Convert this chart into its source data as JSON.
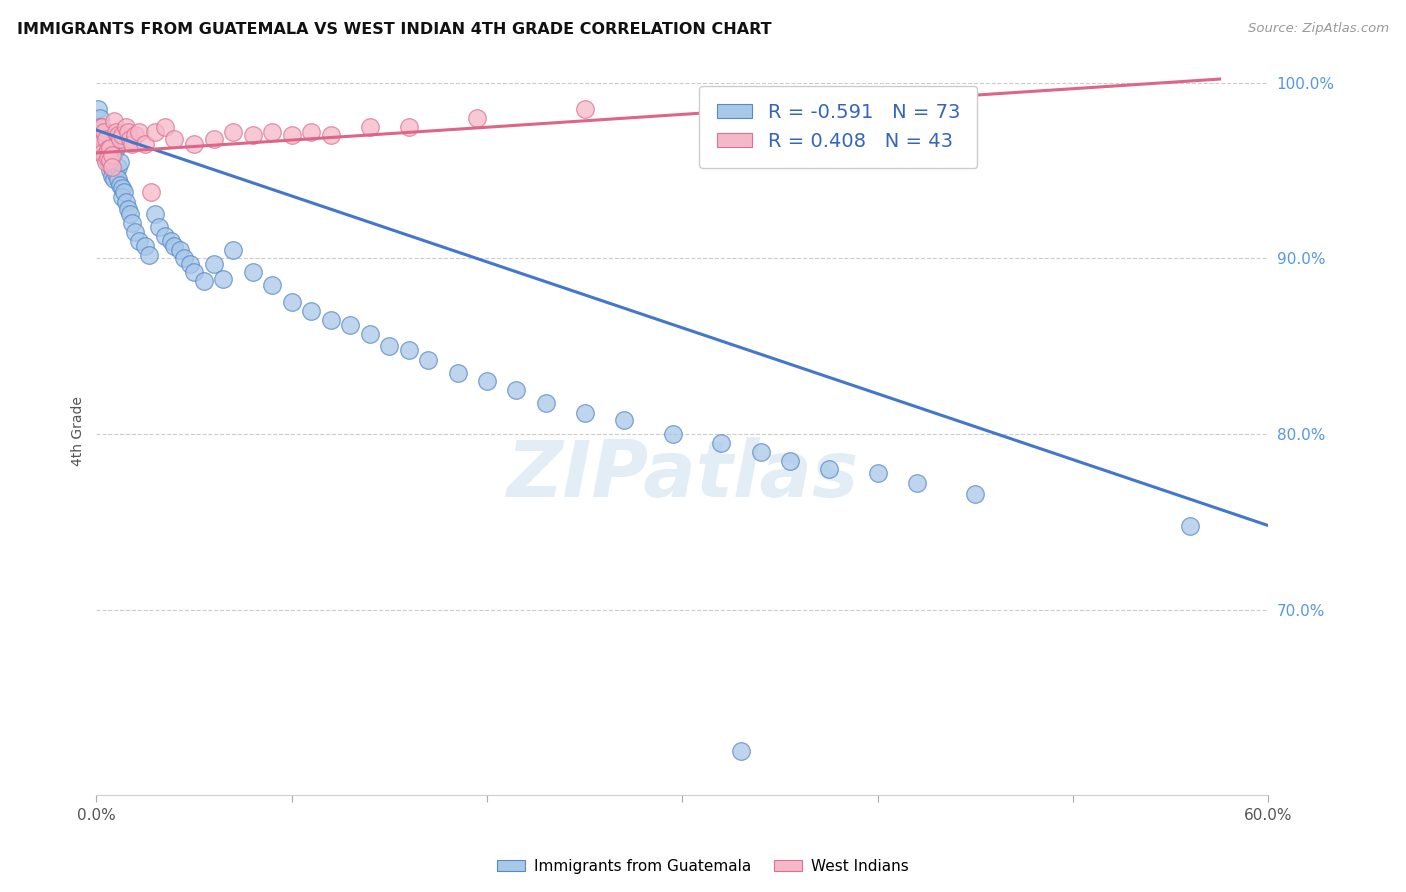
{
  "title": "IMMIGRANTS FROM GUATEMALA VS WEST INDIAN 4TH GRADE CORRELATION CHART",
  "source": "Source: ZipAtlas.com",
  "ylabel": "4th Grade",
  "xlim": [
    0.0,
    0.6
  ],
  "ylim": [
    0.595,
    1.008
  ],
  "xticks": [
    0.0,
    0.1,
    0.2,
    0.3,
    0.4,
    0.5,
    0.6
  ],
  "xticklabels": [
    "0.0%",
    "",
    "",
    "",
    "",
    "",
    "60.0%"
  ],
  "yticks_right": [
    1.0,
    0.9,
    0.8,
    0.7
  ],
  "yticklabels_right": [
    "100.0%",
    "90.0%",
    "80.0%",
    "70.0%"
  ],
  "blue_R": -0.591,
  "blue_N": 73,
  "pink_R": 0.408,
  "pink_N": 43,
  "blue_color": "#a8c8e8",
  "pink_color": "#f5b8c8",
  "blue_edge_color": "#5588cc",
  "pink_edge_color": "#e07090",
  "blue_line_color": "#4477cc",
  "pink_line_color": "#dd6688",
  "legend_label_blue": "Immigrants from Guatemala",
  "legend_label_pink": "West Indians",
  "watermark": "ZIPatlas",
  "blue_line_x0": 0.0,
  "blue_line_y0": 0.973,
  "blue_line_x1": 0.6,
  "blue_line_y1": 0.748,
  "pink_line_x0": 0.0,
  "pink_line_y0": 0.96,
  "pink_line_x1": 0.575,
  "pink_line_y1": 1.002,
  "blue_x": [
    0.001,
    0.002,
    0.002,
    0.003,
    0.003,
    0.004,
    0.004,
    0.005,
    0.005,
    0.006,
    0.006,
    0.007,
    0.007,
    0.008,
    0.008,
    0.009,
    0.009,
    0.01,
    0.01,
    0.011,
    0.011,
    0.012,
    0.012,
    0.013,
    0.013,
    0.014,
    0.015,
    0.016,
    0.017,
    0.018,
    0.02,
    0.022,
    0.025,
    0.027,
    0.03,
    0.032,
    0.035,
    0.038,
    0.04,
    0.043,
    0.045,
    0.048,
    0.05,
    0.055,
    0.06,
    0.065,
    0.07,
    0.08,
    0.09,
    0.1,
    0.11,
    0.12,
    0.13,
    0.14,
    0.15,
    0.16,
    0.17,
    0.185,
    0.2,
    0.215,
    0.23,
    0.25,
    0.27,
    0.295,
    0.32,
    0.34,
    0.355,
    0.375,
    0.4,
    0.42,
    0.45,
    0.56,
    0.33
  ],
  "blue_y": [
    0.985,
    0.98,
    0.975,
    0.972,
    0.967,
    0.965,
    0.96,
    0.963,
    0.957,
    0.96,
    0.955,
    0.957,
    0.95,
    0.952,
    0.947,
    0.96,
    0.945,
    0.963,
    0.948,
    0.952,
    0.945,
    0.955,
    0.942,
    0.94,
    0.935,
    0.938,
    0.932,
    0.928,
    0.925,
    0.92,
    0.915,
    0.91,
    0.907,
    0.902,
    0.925,
    0.918,
    0.913,
    0.91,
    0.907,
    0.905,
    0.9,
    0.897,
    0.892,
    0.887,
    0.897,
    0.888,
    0.905,
    0.892,
    0.885,
    0.875,
    0.87,
    0.865,
    0.862,
    0.857,
    0.85,
    0.848,
    0.842,
    0.835,
    0.83,
    0.825,
    0.818,
    0.812,
    0.808,
    0.8,
    0.795,
    0.79,
    0.785,
    0.78,
    0.778,
    0.772,
    0.766,
    0.748,
    0.62
  ],
  "pink_x": [
    0.001,
    0.002,
    0.002,
    0.003,
    0.003,
    0.004,
    0.004,
    0.005,
    0.005,
    0.006,
    0.006,
    0.007,
    0.007,
    0.008,
    0.008,
    0.009,
    0.01,
    0.011,
    0.012,
    0.013,
    0.015,
    0.016,
    0.017,
    0.018,
    0.02,
    0.022,
    0.025,
    0.028,
    0.03,
    0.035,
    0.04,
    0.05,
    0.06,
    0.07,
    0.08,
    0.09,
    0.1,
    0.11,
    0.12,
    0.14,
    0.16,
    0.195,
    0.25
  ],
  "pink_y": [
    0.97,
    0.975,
    0.965,
    0.975,
    0.96,
    0.972,
    0.958,
    0.968,
    0.955,
    0.962,
    0.957,
    0.963,
    0.956,
    0.959,
    0.952,
    0.978,
    0.972,
    0.97,
    0.968,
    0.97,
    0.975,
    0.972,
    0.968,
    0.965,
    0.97,
    0.972,
    0.965,
    0.938,
    0.972,
    0.975,
    0.968,
    0.965,
    0.968,
    0.972,
    0.97,
    0.972,
    0.97,
    0.972,
    0.97,
    0.975,
    0.975,
    0.98,
    0.985
  ]
}
